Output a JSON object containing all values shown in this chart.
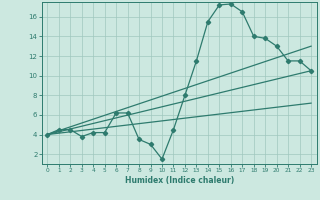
{
  "xlabel": "Humidex (Indice chaleur)",
  "bg_color": "#cce8e0",
  "grid_color": "#a0c8be",
  "line_color": "#2e7b6e",
  "xlim": [
    -0.5,
    23.5
  ],
  "ylim": [
    1,
    17.5
  ],
  "xticks": [
    0,
    1,
    2,
    3,
    4,
    5,
    6,
    7,
    8,
    9,
    10,
    11,
    12,
    13,
    14,
    15,
    16,
    17,
    18,
    19,
    20,
    21,
    22,
    23
  ],
  "yticks": [
    2,
    4,
    6,
    8,
    10,
    12,
    14,
    16
  ],
  "series1_x": [
    0,
    1,
    2,
    3,
    4,
    5,
    6,
    7,
    8,
    9,
    10,
    11,
    12,
    13,
    14,
    15,
    16,
    17,
    18,
    19,
    20,
    21,
    22,
    23
  ],
  "series1_y": [
    4.0,
    4.5,
    4.5,
    3.8,
    4.2,
    4.2,
    6.2,
    6.2,
    3.5,
    3.0,
    1.5,
    4.5,
    8.0,
    11.5,
    15.5,
    17.2,
    17.3,
    16.5,
    14.0,
    13.8,
    13.0,
    11.5,
    11.5,
    10.5
  ],
  "series2_x": [
    0,
    23
  ],
  "series2_y": [
    4.0,
    10.5
  ],
  "series3_x": [
    0,
    23
  ],
  "series3_y": [
    4.0,
    13.0
  ],
  "series4_x": [
    0,
    23
  ],
  "series4_y": [
    4.0,
    7.2
  ]
}
